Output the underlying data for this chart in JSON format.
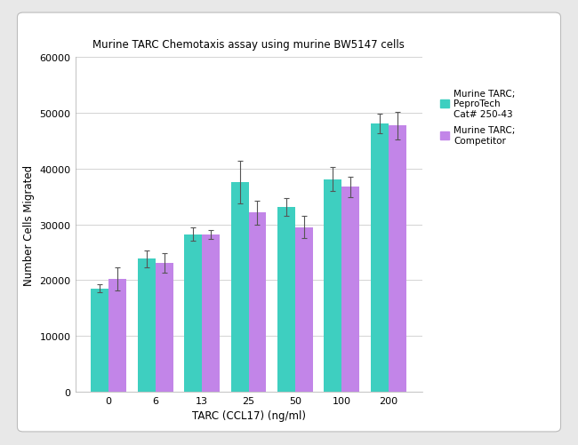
{
  "title": "Murine TARC Chemotaxis assay using murine BW5147 cells",
  "xlabel": "TARC (CCL17) (ng/ml)",
  "ylabel": "Number Cells Migrated",
  "categories": [
    "0",
    "6",
    "13",
    "25",
    "50",
    "100",
    "200"
  ],
  "pepro_values": [
    18500,
    23800,
    28200,
    37600,
    33100,
    38100,
    48100
  ],
  "pepro_errors": [
    700,
    1500,
    1200,
    3800,
    1600,
    2200,
    1800
  ],
  "comp_values": [
    20200,
    23100,
    28200,
    32100,
    29500,
    36700,
    47700
  ],
  "comp_errors": [
    2000,
    1800,
    800,
    2200,
    2000,
    1800,
    2500
  ],
  "pepro_color": "#3ECFC0",
  "comp_color": "#C285E8",
  "ylim": [
    0,
    60000
  ],
  "yticks": [
    0,
    10000,
    20000,
    30000,
    40000,
    50000,
    60000
  ],
  "legend_label1": "Murine TARC;\nPeproTech\nCat# 250-43",
  "legend_label2": "Murine TARC;\nCompetitor",
  "bar_width": 0.38,
  "outer_bg": "#e8e8e8",
  "inner_bg": "#ffffff",
  "title_fontsize": 8.5,
  "axis_label_fontsize": 8.5,
  "tick_fontsize": 8,
  "legend_fontsize": 7.5
}
